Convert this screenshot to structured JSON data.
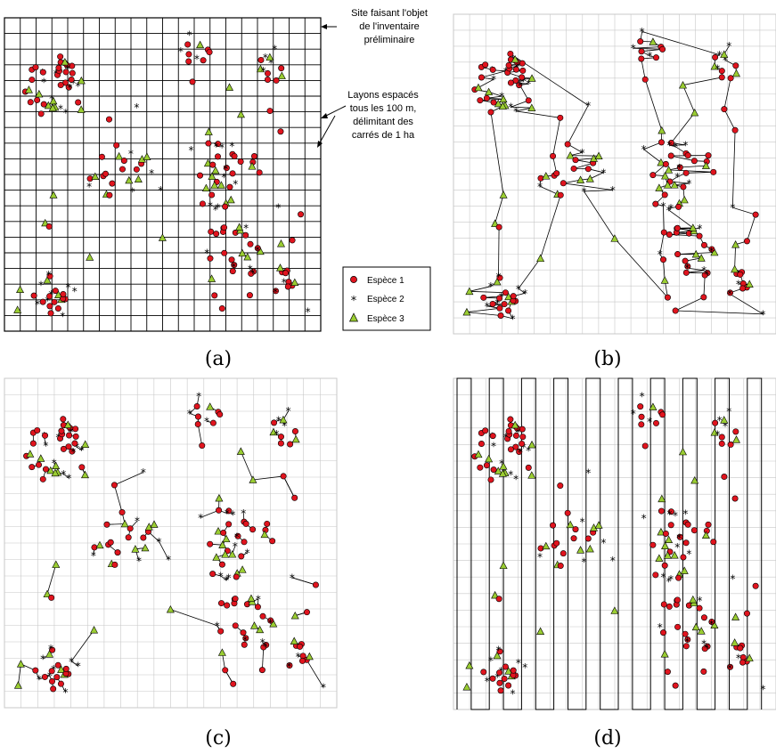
{
  "panels": [
    {
      "id": "a",
      "caption": "(a)"
    },
    {
      "id": "b",
      "caption": "(b)"
    },
    {
      "id": "c",
      "caption": "(c)"
    },
    {
      "id": "d",
      "caption": "(d)"
    }
  ],
  "annotations": {
    "site_lines": [
      "Site faisant l'objet",
      "de l'inventaire",
      "préliminaire"
    ],
    "layons_lines": [
      "Layons espacés",
      "tous les 100 m,",
      "délimitant des",
      "carrés de 1 ha"
    ]
  },
  "legend": {
    "species1": "Espèce 1",
    "species2": "Espèce 2",
    "species3": "Espèce 3"
  },
  "colors": {
    "species1": "#e0141e",
    "species3": "#9acd32",
    "grid_strong": "#000000",
    "grid_light": "#c8c8c8"
  }
}
